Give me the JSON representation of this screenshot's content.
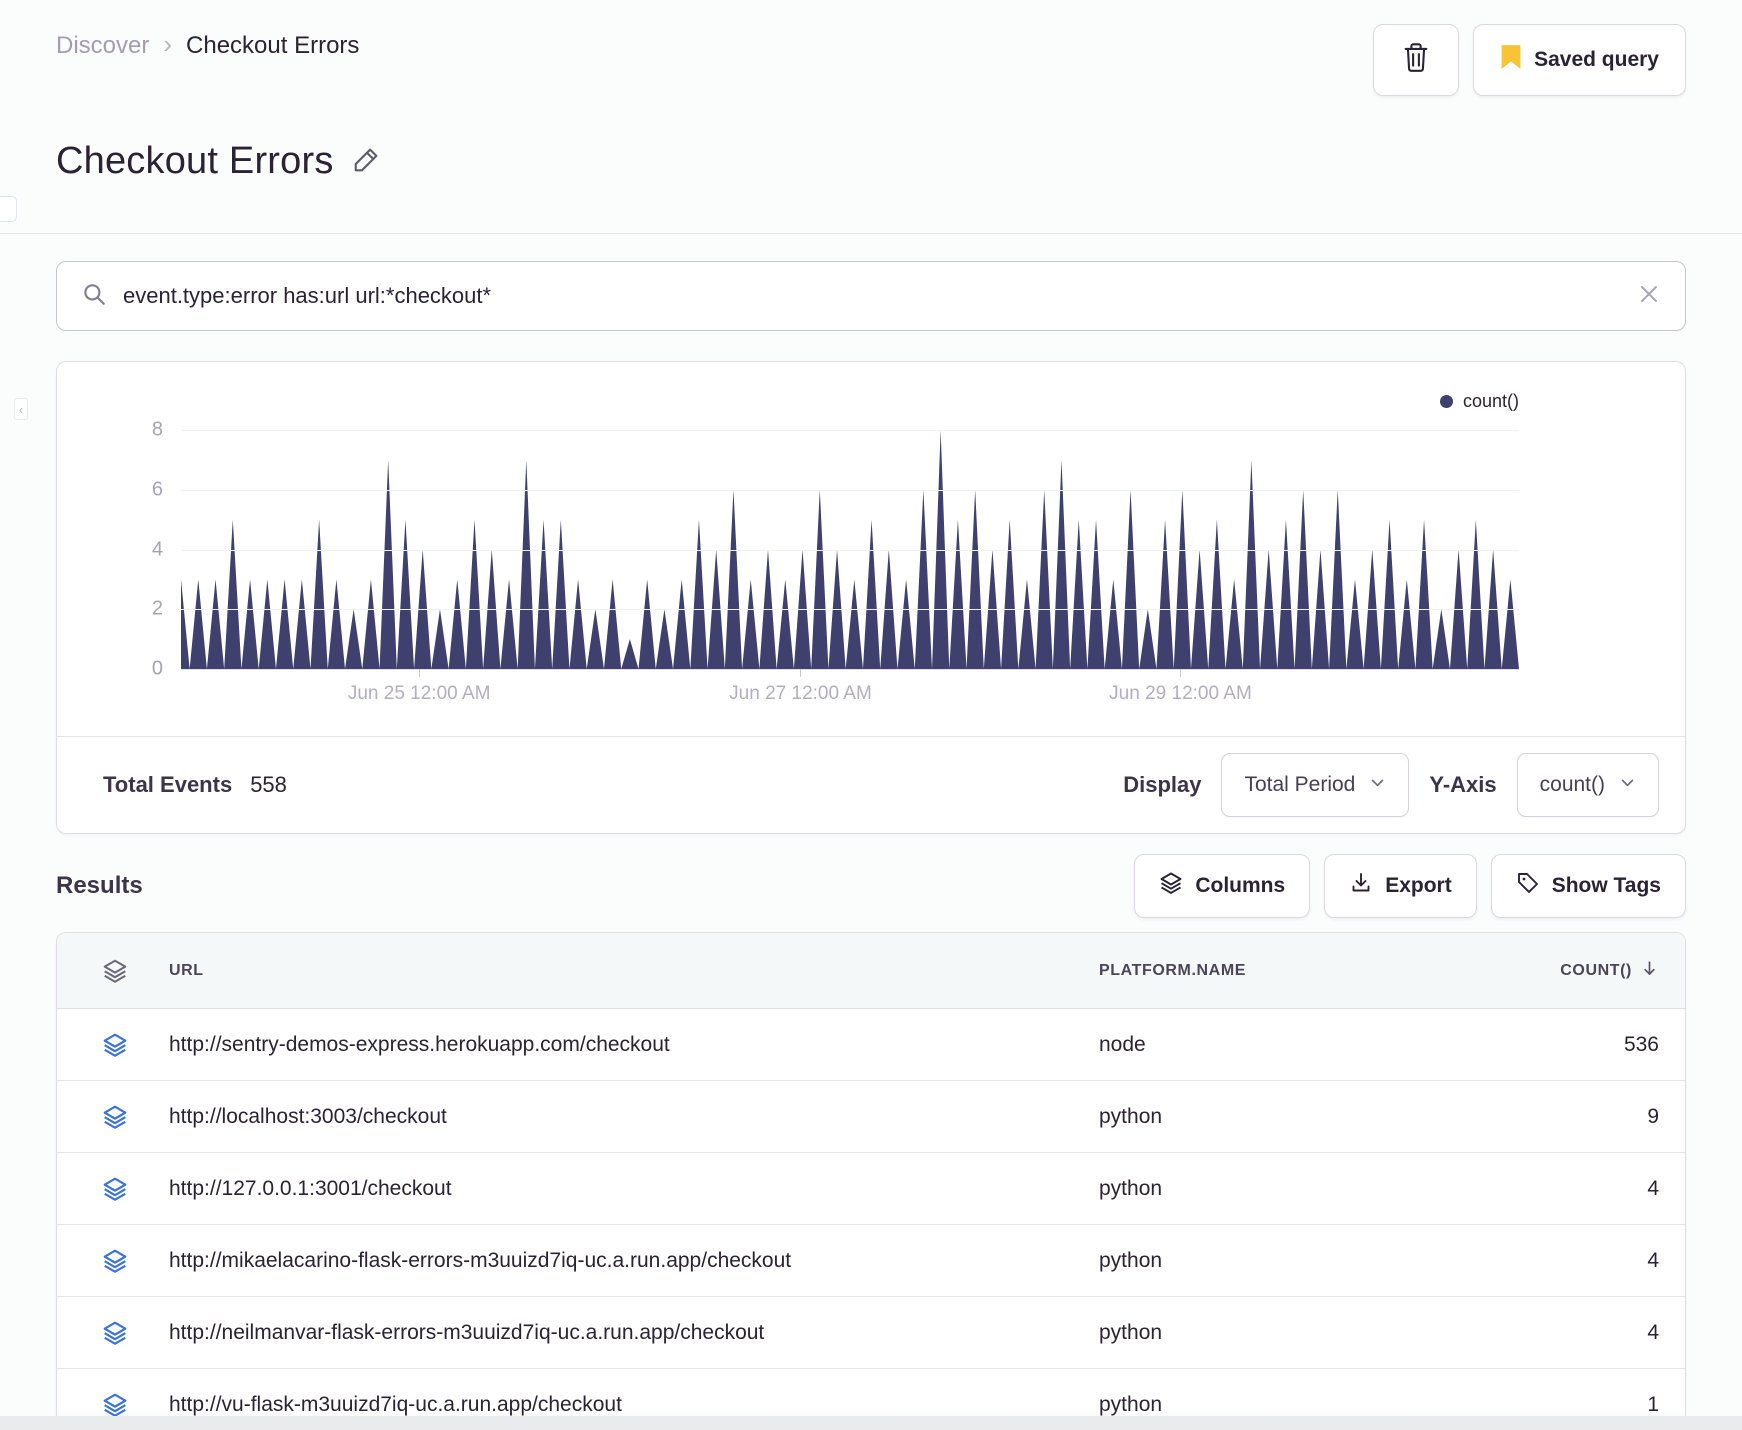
{
  "breadcrumb": {
    "items": [
      "Discover",
      "Checkout Errors"
    ]
  },
  "toolbar": {
    "saved_query_label": "Saved query"
  },
  "header": {
    "title": "Checkout Errors"
  },
  "search": {
    "query": "event.type:error has:url url:*checkout*"
  },
  "chart_data": {
    "type": "area",
    "legend_position": "top-right",
    "ylim": [
      0,
      8
    ],
    "yticks": [
      0,
      2,
      4,
      6,
      8
    ],
    "grid": true,
    "xticks": [
      {
        "label": "Jun 25 12:00 AM",
        "pos": 0.178
      },
      {
        "label": "Jun 27 12:00 AM",
        "pos": 0.463
      },
      {
        "label": "Jun 29 12:00 AM",
        "pos": 0.747
      }
    ],
    "series": [
      {
        "name": "count()",
        "color": "#3F406E",
        "values": [
          3,
          0,
          3,
          0,
          3,
          0,
          5,
          0,
          3,
          0,
          3,
          0,
          3,
          0,
          3,
          0,
          5,
          0,
          3,
          0,
          2,
          0,
          3,
          0,
          7,
          0,
          5,
          0,
          4,
          0,
          2,
          0,
          3,
          0,
          5,
          0,
          4,
          0,
          3,
          0,
          7,
          0,
          5,
          0,
          5,
          0,
          3,
          0,
          2,
          0,
          3,
          0,
          1,
          0,
          3,
          0,
          2,
          0,
          3,
          0,
          5,
          0,
          4,
          0,
          6,
          0,
          3,
          0,
          4,
          0,
          3,
          0,
          4,
          0,
          6,
          0,
          4,
          0,
          3,
          0,
          5,
          0,
          4,
          0,
          3,
          0,
          6,
          0,
          8,
          0,
          5,
          0,
          6,
          0,
          4,
          0,
          5,
          0,
          3,
          0,
          6,
          0,
          7,
          0,
          5,
          0,
          5,
          0,
          3,
          0,
          6,
          0,
          2,
          0,
          5,
          0,
          6,
          0,
          4,
          0,
          5,
          0,
          3,
          0,
          7,
          0,
          4,
          0,
          5,
          0,
          6,
          0,
          4,
          0,
          6,
          0,
          3,
          0,
          4,
          0,
          5,
          0,
          3,
          0,
          5,
          0,
          2,
          0,
          4,
          0,
          5,
          0,
          4,
          0,
          3,
          0
        ]
      }
    ]
  },
  "chart_footer": {
    "total_label": "Total Events",
    "total_value": "558",
    "display_label": "Display",
    "display_value": "Total Period",
    "yaxis_label": "Y-Axis",
    "yaxis_value": "count()"
  },
  "results": {
    "heading": "Results",
    "columns_label": "Columns",
    "export_label": "Export",
    "show_tags_label": "Show Tags"
  },
  "table": {
    "headers": [
      "URL",
      "PLATFORM.NAME",
      "COUNT()"
    ],
    "rows": [
      {
        "url": "http://sentry-demos-express.herokuapp.com/checkout",
        "platform": "node",
        "count": "536"
      },
      {
        "url": "http://localhost:3003/checkout",
        "platform": "python",
        "count": "9"
      },
      {
        "url": "http://127.0.0.1:3001/checkout",
        "platform": "python",
        "count": "4"
      },
      {
        "url": "http://mikaelacarino-flask-errors-m3uuizd7iq-uc.a.run.app/checkout",
        "platform": "python",
        "count": "4"
      },
      {
        "url": "http://neilmanvar-flask-errors-m3uuizd7iq-uc.a.run.app/checkout",
        "platform": "python",
        "count": "4"
      },
      {
        "url": "http://vu-flask-m3uuizd7iq-uc.a.run.app/checkout",
        "platform": "python",
        "count": "1"
      }
    ]
  },
  "colors": {
    "series_navy": "#3F406E",
    "bookmark_yellow": "#F9C336",
    "row_icon_blue": "#3B72DA"
  }
}
